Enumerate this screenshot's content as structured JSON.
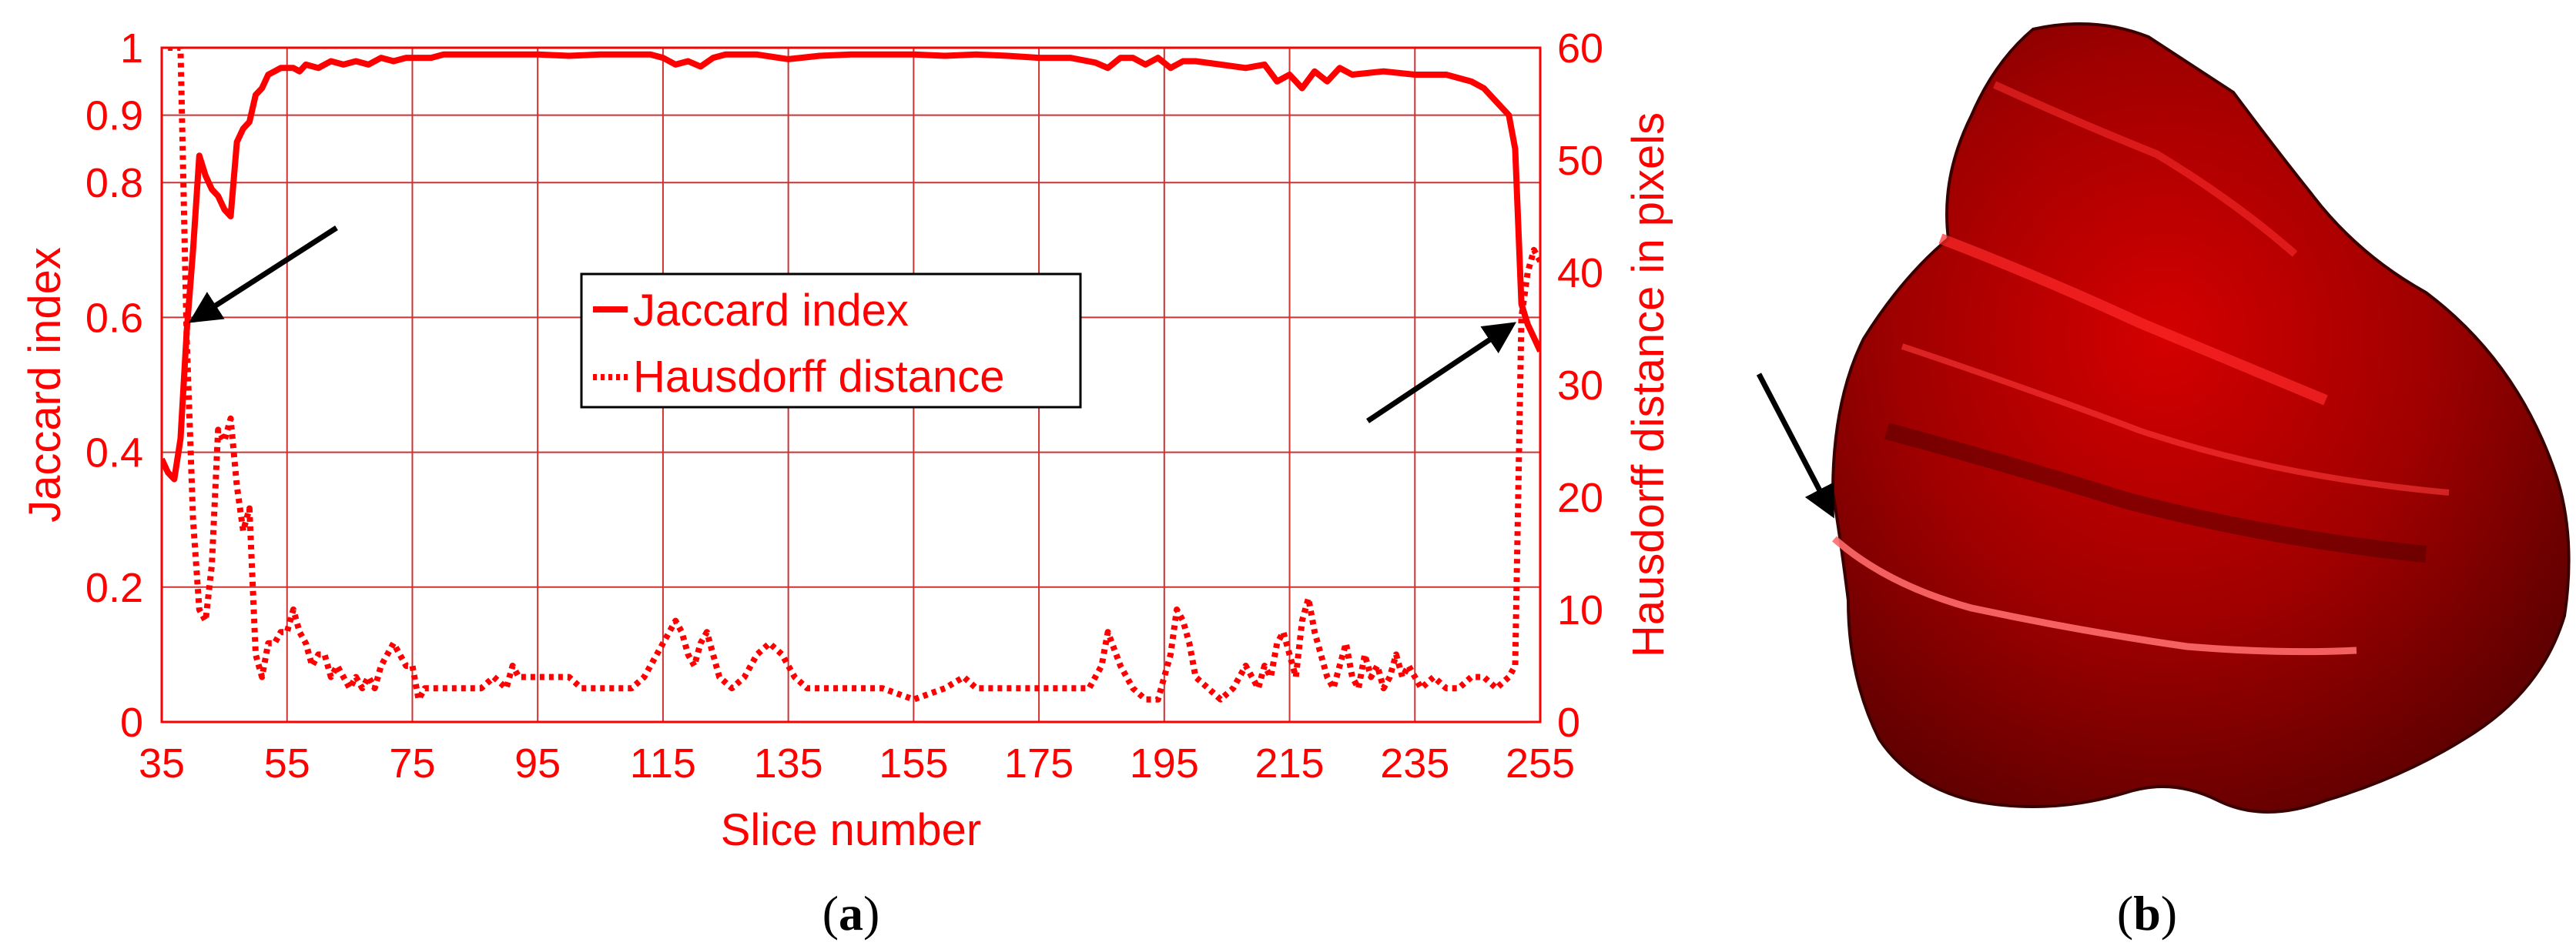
{
  "colors": {
    "accent": "#ff0000",
    "grid": "#cc3333",
    "arrow": "#000000",
    "surface_dark": "#7a0000",
    "surface": "#cc0000",
    "surface_light": "#ff2a2a"
  },
  "panels": {
    "a_label_open": "(",
    "a_label_letter": "a",
    "a_label_close": ")",
    "b_label_open": "(",
    "b_label_letter": "b",
    "b_label_close": ")"
  },
  "chart_data": {
    "type": "line",
    "title": "",
    "xlabel": "Slice number",
    "ylabel_left": "Jaccard index",
    "ylabel_right": "Hausdorff distance in pixels",
    "xlim": [
      35,
      255
    ],
    "ylim_left": [
      0,
      1
    ],
    "ylim_right": [
      0,
      60
    ],
    "x_ticks": [
      "35",
      "55",
      "75",
      "95",
      "115",
      "135",
      "155",
      "175",
      "195",
      "215",
      "235",
      "255"
    ],
    "x_tick_values": [
      35,
      55,
      75,
      95,
      115,
      135,
      155,
      175,
      195,
      215,
      235,
      255
    ],
    "y_left_ticks": [
      "0",
      "0.2",
      "0.4",
      "0.6",
      "0.8",
      "0.9",
      "1"
    ],
    "y_left_tick_values": [
      0,
      0.2,
      0.4,
      0.6,
      0.8,
      0.9,
      1
    ],
    "y_right_ticks": [
      "0",
      "10",
      "20",
      "30",
      "40",
      "50",
      "60"
    ],
    "y_right_tick_values": [
      0,
      10,
      20,
      30,
      40,
      50,
      60
    ],
    "grid": true,
    "legend_position": "center",
    "series": [
      {
        "name": "Jaccard index",
        "axis": "left",
        "style": "solid",
        "x": [
          35,
          36,
          37,
          38,
          39,
          40,
          41,
          42,
          43,
          44,
          45,
          46,
          47,
          48,
          49,
          50,
          51,
          52,
          53,
          54,
          55,
          56,
          57,
          58,
          60,
          62,
          64,
          66,
          68,
          70,
          72,
          74,
          76,
          78,
          80,
          85,
          90,
          95,
          100,
          105,
          110,
          113,
          115,
          117,
          119,
          121,
          123,
          125,
          130,
          135,
          140,
          145,
          150,
          155,
          160,
          165,
          170,
          175,
          180,
          184,
          186,
          188,
          190,
          192,
          194,
          196,
          198,
          200,
          204,
          208,
          211,
          213,
          215,
          217,
          219,
          221,
          223,
          225,
          230,
          235,
          240,
          244,
          246,
          248,
          250,
          251,
          252,
          253,
          254,
          255
        ],
        "y": [
          0.39,
          0.37,
          0.36,
          0.42,
          0.58,
          0.7,
          0.84,
          0.81,
          0.79,
          0.78,
          0.76,
          0.75,
          0.86,
          0.88,
          0.89,
          0.93,
          0.94,
          0.96,
          0.965,
          0.97,
          0.97,
          0.97,
          0.965,
          0.975,
          0.97,
          0.98,
          0.975,
          0.98,
          0.975,
          0.985,
          0.98,
          0.985,
          0.985,
          0.985,
          0.99,
          0.99,
          0.99,
          0.99,
          0.988,
          0.99,
          0.99,
          0.99,
          0.985,
          0.975,
          0.98,
          0.972,
          0.985,
          0.99,
          0.99,
          0.983,
          0.988,
          0.99,
          0.99,
          0.99,
          0.988,
          0.99,
          0.988,
          0.985,
          0.985,
          0.978,
          0.97,
          0.985,
          0.985,
          0.975,
          0.985,
          0.97,
          0.98,
          0.98,
          0.975,
          0.97,
          0.975,
          0.95,
          0.96,
          0.94,
          0.965,
          0.95,
          0.97,
          0.96,
          0.965,
          0.96,
          0.96,
          0.95,
          0.94,
          0.92,
          0.9,
          0.85,
          0.62,
          0.59,
          0.57,
          0.55
        ]
      },
      {
        "name": "Hausdorff distance",
        "axis": "right",
        "style": "dotted",
        "x": [
          36,
          37,
          38,
          39,
          40,
          41,
          42,
          43,
          44,
          45,
          46,
          47,
          48,
          49,
          50,
          51,
          52,
          53,
          54,
          55,
          56,
          57,
          58,
          59,
          60,
          61,
          62,
          63,
          64,
          65,
          66,
          67,
          68,
          69,
          70,
          71,
          72,
          73,
          74,
          75,
          76,
          77,
          78,
          79,
          80,
          82,
          84,
          86,
          88,
          90,
          91,
          92,
          94,
          96,
          98,
          100,
          102,
          104,
          106,
          108,
          110,
          112,
          114,
          116,
          117,
          118,
          119,
          120,
          121,
          122,
          123,
          124,
          126,
          128,
          130,
          132,
          134,
          136,
          138,
          140,
          145,
          150,
          155,
          160,
          163,
          165,
          170,
          175,
          180,
          183,
          185,
          186,
          188,
          190,
          192,
          194,
          195,
          196,
          197,
          198,
          199,
          200,
          202,
          204,
          206,
          208,
          209,
          210,
          211,
          212,
          213,
          214,
          215,
          216,
          217,
          218,
          219,
          220,
          221,
          222,
          223,
          224,
          225,
          226,
          227,
          228,
          229,
          230,
          231,
          232,
          233,
          234,
          235,
          236,
          238,
          240,
          242,
          244,
          246,
          248,
          250,
          251,
          252,
          253,
          254,
          255
        ],
        "y": [
          60,
          60,
          60,
          34,
          18,
          10,
          9,
          14,
          26,
          25,
          27,
          21,
          17,
          19,
          6,
          4,
          7,
          7,
          8,
          8,
          10,
          8,
          7,
          5,
          6,
          6,
          4,
          5,
          4,
          3,
          4,
          3,
          4,
          3,
          5,
          6,
          7,
          6,
          5,
          5,
          2,
          3,
          3,
          3,
          3,
          3,
          3,
          3,
          4,
          3,
          5,
          4,
          4,
          4,
          4,
          4,
          3,
          3,
          3,
          3,
          3,
          4,
          6,
          8,
          9,
          8,
          6,
          5,
          7,
          8,
          6,
          4,
          3,
          4,
          6,
          7,
          6,
          4,
          3,
          3,
          3,
          3,
          2,
          3,
          4,
          3,
          3,
          3,
          3,
          3,
          5,
          8,
          5,
          3,
          2,
          2,
          4,
          6,
          10,
          9,
          7,
          4,
          3,
          2,
          3,
          5,
          4,
          3,
          5,
          4,
          7,
          8,
          6,
          4,
          9,
          11,
          8,
          6,
          4,
          3,
          5,
          7,
          4,
          3,
          6,
          4,
          5,
          3,
          4,
          6,
          4,
          5,
          4,
          3,
          4,
          3,
          3,
          4,
          4,
          3,
          4,
          5,
          36,
          40,
          42,
          41
        ]
      }
    ],
    "annotations": [
      {
        "type": "arrow",
        "points_to_x": 37,
        "points_to_y_left": 0.57
      },
      {
        "type": "arrow",
        "points_to_x": 254,
        "points_to_y_left": 0.57
      }
    ]
  }
}
